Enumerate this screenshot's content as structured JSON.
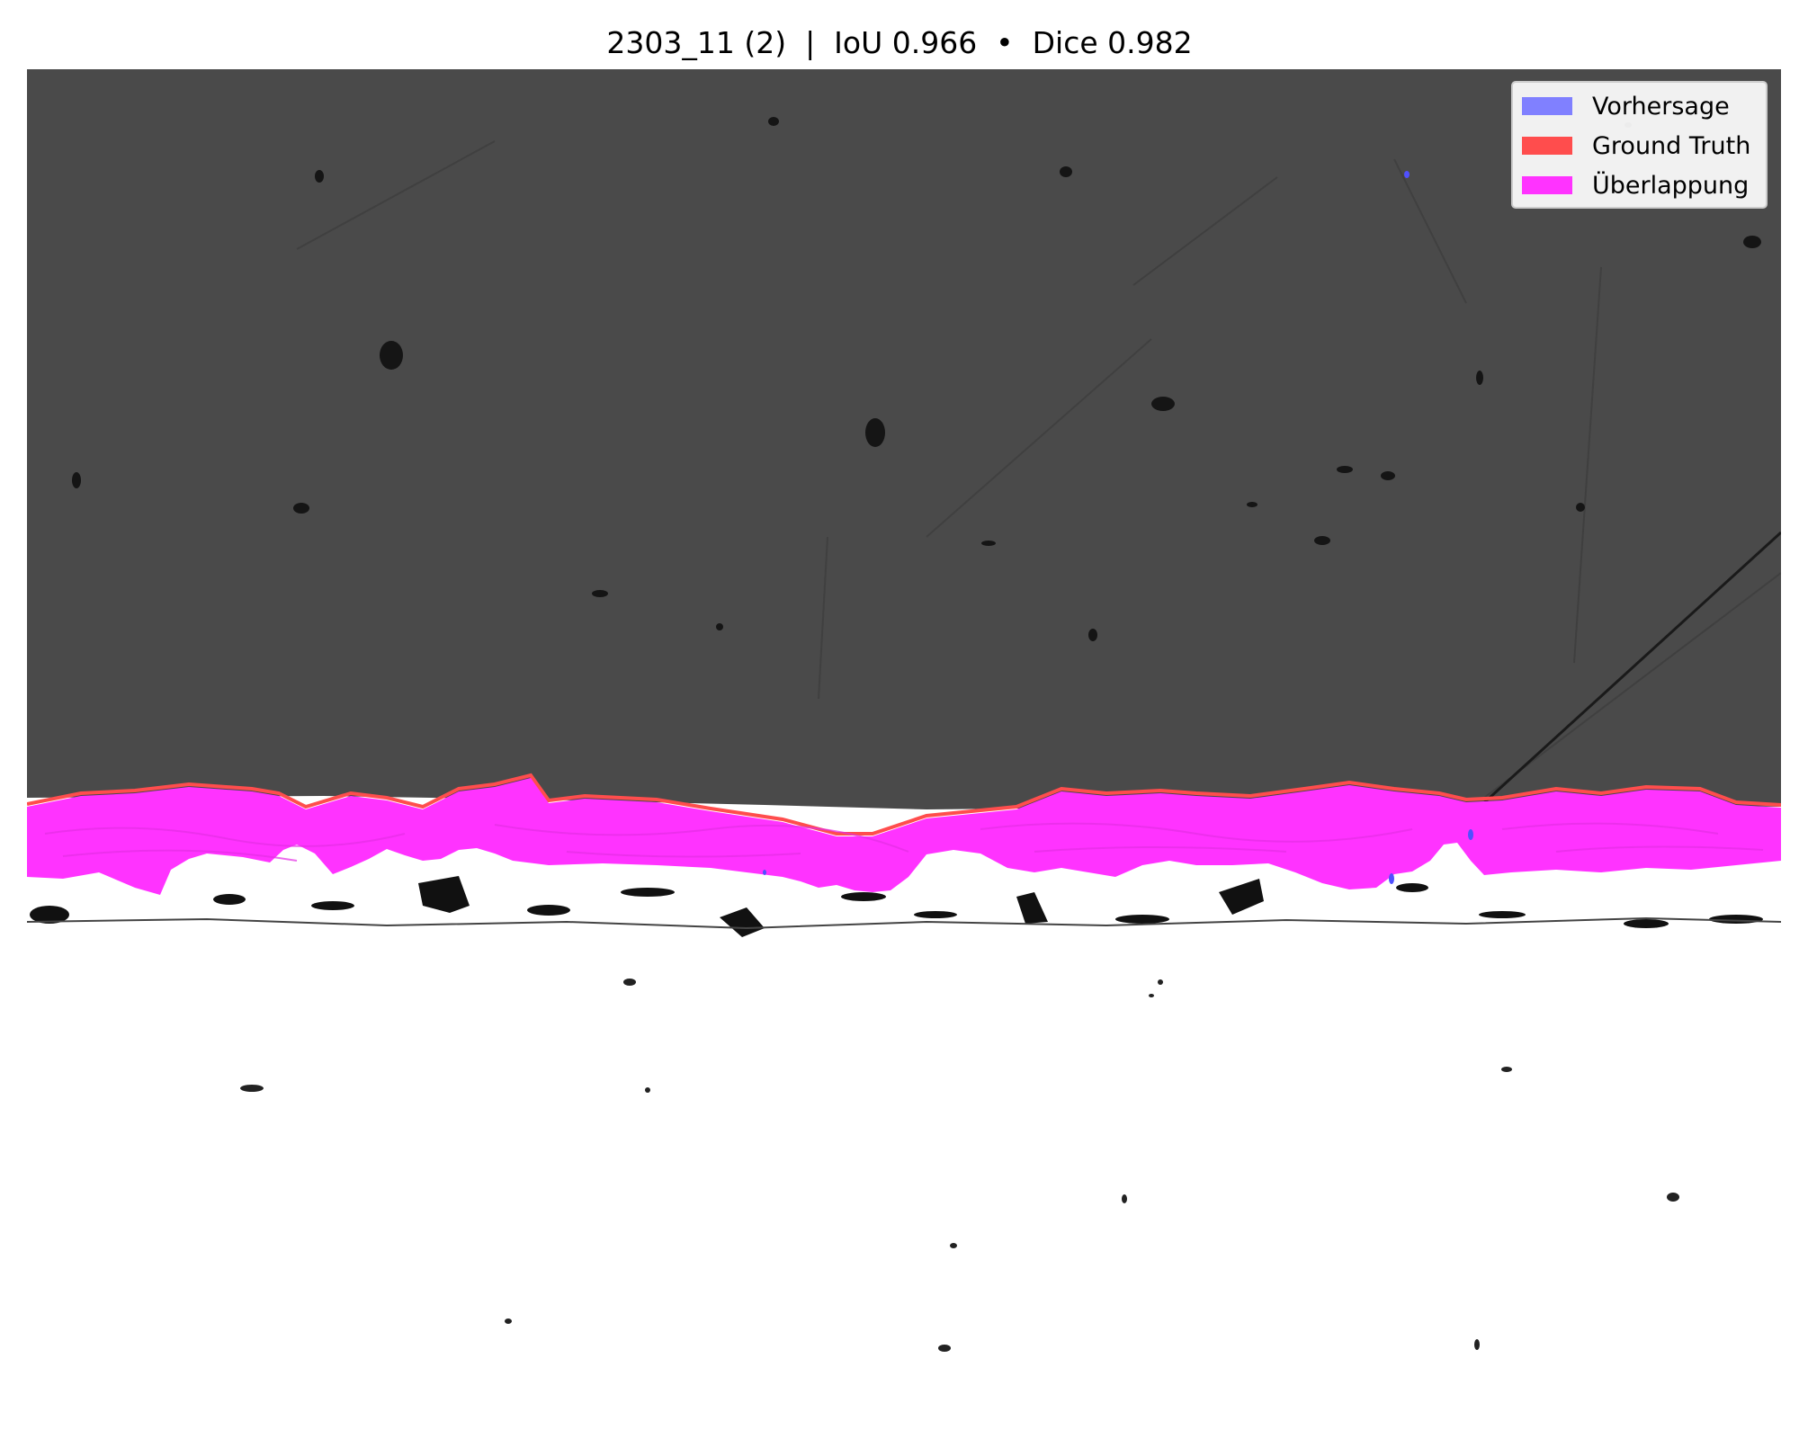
{
  "title": "2303_11 (2)  |  IoU 0.966  •  Dice 0.982",
  "legend": {
    "items": [
      {
        "label": "Vorhersage",
        "color": "#8080ff"
      },
      {
        "label": "Ground Truth",
        "color": "#ff4d4d"
      },
      {
        "label": "Überlappung",
        "color": "#ff33ff"
      }
    ]
  },
  "colors": {
    "upper_region": "#4a4a4a",
    "lower_region": "#ffffff",
    "overlap": "#ff33ff",
    "prediction": "#8080ff",
    "ground_truth": "#ff4d4d"
  }
}
